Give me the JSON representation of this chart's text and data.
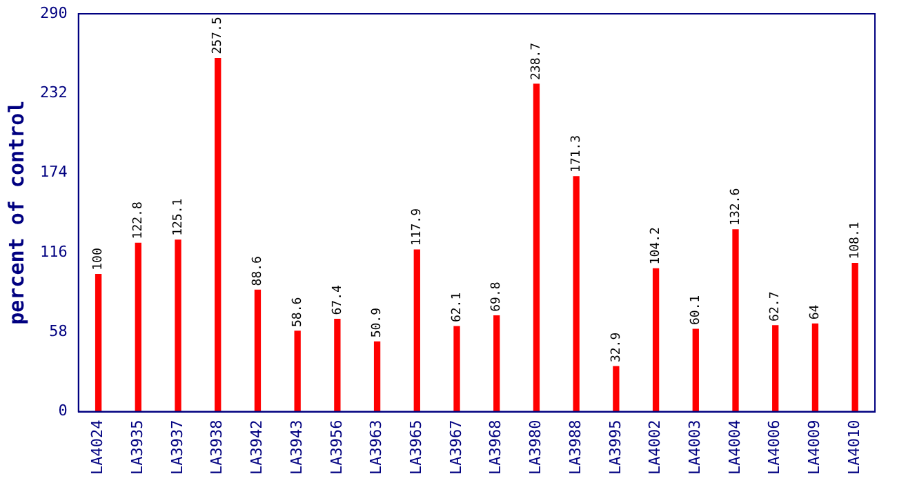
{
  "chart_data": {
    "type": "bar",
    "ylabel": "percent of control",
    "categories": [
      "LA4024",
      "LA3935",
      "LA3937",
      "LA3938",
      "LA3942",
      "LA3943",
      "LA3956",
      "LA3963",
      "LA3965",
      "LA3967",
      "LA3968",
      "LA3980",
      "LA3988",
      "LA3995",
      "LA4002",
      "LA4003",
      "LA4004",
      "LA4006",
      "LA4009",
      "LA4010"
    ],
    "values": [
      100,
      122.8,
      125.1,
      257.5,
      88.6,
      58.6,
      67.4,
      50.9,
      117.9,
      62.1,
      69.8,
      238.7,
      171.3,
      32.9,
      104.2,
      60.1,
      132.6,
      62.7,
      64,
      108.1
    ],
    "color": "#ff0000",
    "ylim": [
      0,
      290
    ],
    "yticks": [
      0,
      58,
      116,
      174,
      232,
      290
    ],
    "grid": false,
    "data_labels": true
  }
}
